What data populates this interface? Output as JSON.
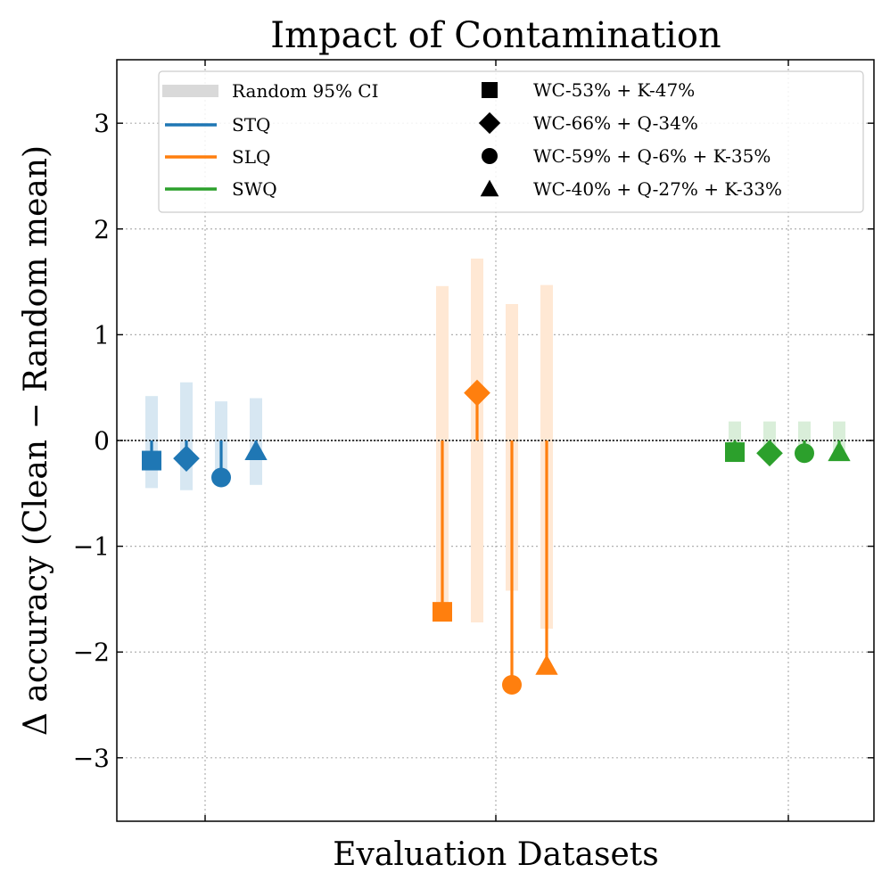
{
  "chart_data": {
    "type": "scatter",
    "title": "Impact of Contamination",
    "xlabel": "Evaluation Datasets",
    "ylabel": "Δ accuracy (Clean − Random mean)",
    "ylim": [
      -3.6,
      3.6
    ],
    "yticks": [
      -3,
      -2,
      -1,
      0,
      1,
      2,
      3
    ],
    "ytick_labels": [
      "−3",
      "−2",
      "−1",
      "0",
      "1",
      "2",
      "3"
    ],
    "grid": true,
    "legend_position": "top-right",
    "ci_label": "Random 95% CI",
    "groups": [
      {
        "name": "STQ",
        "color": "#1f77b4",
        "position": 0
      },
      {
        "name": "SLQ",
        "color": "#ff7f0e",
        "position": 1
      },
      {
        "name": "SWQ",
        "color": "#2ca02c",
        "position": 2
      }
    ],
    "mixtures": [
      {
        "name": "WC-53% + K-47%",
        "marker": "square"
      },
      {
        "name": "WC-66% + Q-34%",
        "marker": "diamond"
      },
      {
        "name": "WC-59% + Q-6% + K-35%",
        "marker": "circle"
      },
      {
        "name": "WC-40% + Q-27% + K-33%",
        "marker": "triangle"
      }
    ],
    "series": [
      {
        "dataset": "STQ",
        "mixture": "WC-53% + K-47%",
        "value": -0.19,
        "ci": [
          -0.45,
          0.42
        ]
      },
      {
        "dataset": "STQ",
        "mixture": "WC-66% + Q-34%",
        "value": -0.17,
        "ci": [
          -0.47,
          0.55
        ]
      },
      {
        "dataset": "STQ",
        "mixture": "WC-59% + Q-6% + K-35%",
        "value": -0.35,
        "ci": [
          -0.38,
          0.37
        ]
      },
      {
        "dataset": "STQ",
        "mixture": "WC-40% + Q-27% + K-33%",
        "value": -0.1,
        "ci": [
          -0.42,
          0.4
        ]
      },
      {
        "dataset": "SLQ",
        "mixture": "WC-53% + K-47%",
        "value": -1.62,
        "ci": [
          -1.62,
          1.46
        ]
      },
      {
        "dataset": "SLQ",
        "mixture": "WC-66% + Q-34%",
        "value": 0.45,
        "ci": [
          -1.72,
          1.72
        ]
      },
      {
        "dataset": "SLQ",
        "mixture": "WC-59% + Q-6% + K-35%",
        "value": -2.31,
        "ci": [
          -1.42,
          1.29
        ]
      },
      {
        "dataset": "SLQ",
        "mixture": "WC-40% + Q-27% + K-33%",
        "value": -2.13,
        "ci": [
          -1.78,
          1.47
        ]
      },
      {
        "dataset": "SWQ",
        "mixture": "WC-53% + K-47%",
        "value": -0.11,
        "ci": [
          -0.1,
          0.18
        ]
      },
      {
        "dataset": "SWQ",
        "mixture": "WC-66% + Q-34%",
        "value": -0.12,
        "ci": [
          -0.1,
          0.18
        ]
      },
      {
        "dataset": "SWQ",
        "mixture": "WC-59% + Q-6% + K-35%",
        "value": -0.12,
        "ci": [
          -0.1,
          0.18
        ]
      },
      {
        "dataset": "SWQ",
        "mixture": "WC-40% + Q-27% + K-33%",
        "value": -0.11,
        "ci": [
          -0.1,
          0.18
        ]
      }
    ]
  }
}
